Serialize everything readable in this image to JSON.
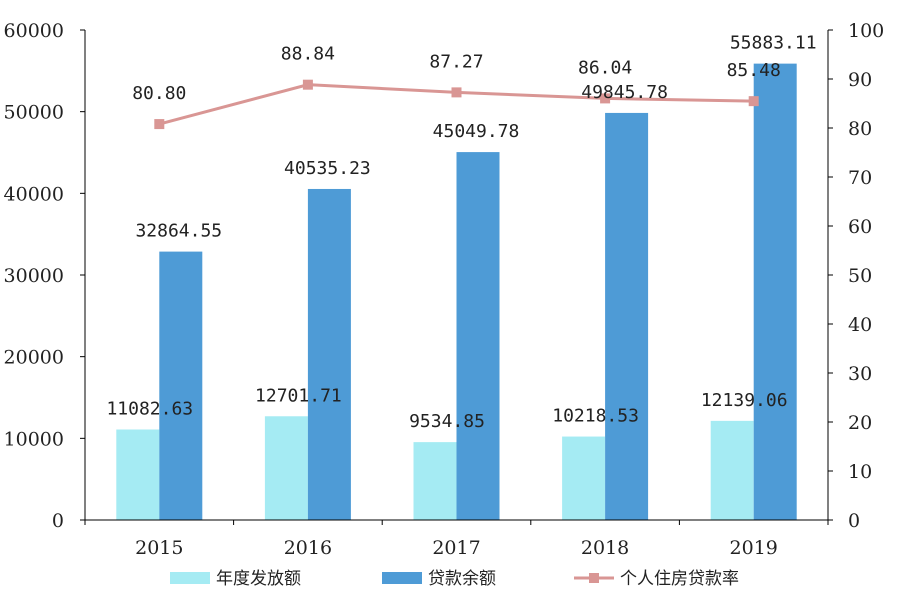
{
  "chart_data": {
    "type": "bar",
    "categories": [
      "2015",
      "2016",
      "2017",
      "2018",
      "2019"
    ],
    "series": [
      {
        "name": "年度发放额",
        "chart": "bar",
        "axis": "left",
        "color": "#A5EBF3",
        "values": [
          11082.63,
          12701.71,
          9534.85,
          10218.53,
          12139.06
        ],
        "labels": [
          "11082.63",
          "12701.71",
          "9534.85",
          "10218.53",
          "12139.06"
        ]
      },
      {
        "name": "贷款余额",
        "chart": "bar",
        "axis": "left",
        "color": "#4E9BD6",
        "values": [
          32864.55,
          40535.23,
          45049.78,
          49845.78,
          55883.11
        ],
        "labels": [
          "32864.55",
          "40535.23",
          "45049.78",
          "49845.78",
          "55883.11"
        ]
      },
      {
        "name": "个人住房贷款率",
        "chart": "line",
        "axis": "right",
        "color": "#D99694",
        "values": [
          80.8,
          88.84,
          87.27,
          86.04,
          85.48
        ],
        "labels": [
          "80.80",
          "88.84",
          "87.27",
          "86.04",
          "85.48"
        ]
      }
    ],
    "ylim_left": [
      0,
      60000
    ],
    "yticks_left": [
      "0",
      "10000",
      "20000",
      "30000",
      "40000",
      "50000",
      "60000"
    ],
    "ylim_right": [
      0,
      100
    ],
    "yticks_right": [
      "0",
      "10",
      "20",
      "30",
      "40",
      "50",
      "60",
      "70",
      "80",
      "90",
      "100"
    ],
    "grid": false,
    "legend_position": "bottom"
  }
}
